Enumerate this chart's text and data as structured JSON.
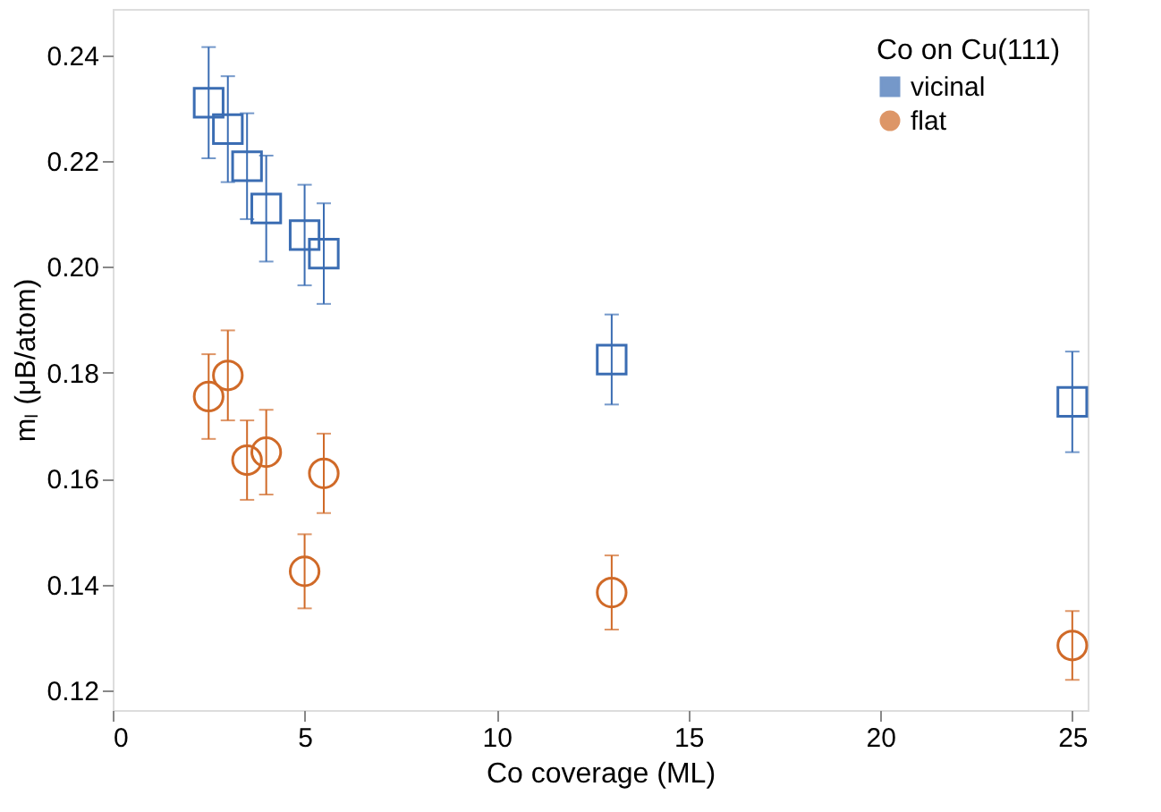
{
  "chart_data": {
    "type": "scatter",
    "xlabel": "Co coverage (ML)",
    "ylabel": "mₗ (μB/atom)",
    "legend_title": "Co on Cu(111)",
    "legend": "top right",
    "grid": false,
    "xlim": [
      0,
      25.4
    ],
    "xticks": [
      0,
      5,
      10,
      15,
      20,
      25
    ],
    "ylim": [
      0.1163,
      0.2487
    ],
    "yticks": [
      0.12,
      0.14,
      0.16,
      0.18,
      {
        "value": 0.2,
        "label": "0.20"
      },
      0.22,
      0.24
    ],
    "series": [
      {
        "name": "vicinal",
        "color": "#3b6db3",
        "marker": "square",
        "x": [
          2.5,
          3,
          3.5,
          4,
          5,
          5.5,
          13,
          25
        ],
        "values": [
          0.231,
          0.226,
          0.219,
          0.211,
          0.206,
          0.2025,
          0.1825,
          0.1745
        ],
        "errors": [
          0.0105,
          0.01,
          0.01,
          0.01,
          0.0095,
          0.0095,
          0.0085,
          0.0095
        ]
      },
      {
        "name": "flat",
        "color": "#d06a28",
        "marker": "circle",
        "x": [
          2.5,
          3,
          3.5,
          4,
          5,
          5.5,
          13,
          25
        ],
        "values": [
          0.1755,
          0.1795,
          0.1635,
          0.165,
          0.1425,
          0.161,
          0.1385,
          0.1285
        ],
        "errors": [
          0.008,
          0.0085,
          0.0075,
          0.008,
          0.007,
          0.0075,
          0.007,
          0.0065
        ]
      }
    ]
  }
}
